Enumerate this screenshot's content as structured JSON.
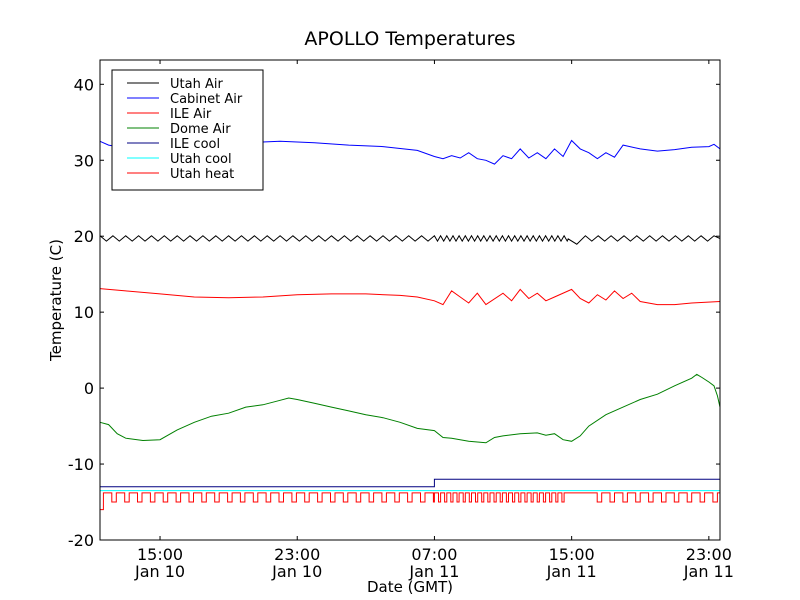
{
  "chart_data": {
    "type": "line",
    "title": "APOLLO Temperatures",
    "xlabel": "Date (GMT)",
    "ylabel": "Temperature (C)",
    "x_units": "hours since Jan 10 00:00 GMT",
    "xlim": [
      11.5,
      47.65
    ],
    "ylim": [
      -20,
      43.2
    ],
    "yticks": [
      -20,
      -10,
      0,
      10,
      20,
      30,
      40
    ],
    "ytick_labels": [
      "-20",
      "-10",
      "0",
      "10",
      "20",
      "30",
      "40"
    ],
    "xticks": [
      15,
      23,
      31,
      39,
      47
    ],
    "xtick_labels": [
      [
        "15:00",
        "Jan 10"
      ],
      [
        "23:00",
        "Jan 10"
      ],
      [
        "07:00",
        "Jan 11"
      ],
      [
        "15:00",
        "Jan 11"
      ],
      [
        "23:00",
        "Jan 11"
      ]
    ],
    "legend_placement": "top-left",
    "series": [
      {
        "name": "Utah Air",
        "color": "#000000",
        "base": [
          [
            11.5,
            19.7
          ],
          [
            47.65,
            19.7
          ]
        ],
        "oscillation": {
          "amplitude": 0.35,
          "high_low": "triangle",
          "segments": [
            {
              "from": 11.5,
              "to": 31,
              "period": 0.75
            },
            {
              "from": 31,
              "to": 38.8,
              "period": 0.36
            },
            {
              "from": 38.8,
              "to": 39.8,
              "period": 1.0,
              "offset": -0.4
            },
            {
              "from": 39.8,
              "to": 47.65,
              "period": 0.75
            }
          ]
        }
      },
      {
        "name": "Cabinet Air",
        "color": "#0000ff",
        "points": [
          [
            11.5,
            32.5
          ],
          [
            12,
            32.0
          ],
          [
            13,
            31.6
          ],
          [
            15,
            31.7
          ],
          [
            17,
            31.8
          ],
          [
            19,
            32.2
          ],
          [
            22,
            32.5
          ],
          [
            24,
            32.3
          ],
          [
            26,
            32.0
          ],
          [
            28,
            31.8
          ],
          [
            30,
            31.3
          ],
          [
            31,
            30.5
          ],
          [
            31.5,
            30.2
          ],
          [
            32,
            30.6
          ],
          [
            32.5,
            30.3
          ],
          [
            33,
            31.0
          ],
          [
            33.5,
            30.2
          ],
          [
            34,
            30.0
          ],
          [
            34.5,
            29.5
          ],
          [
            35,
            30.6
          ],
          [
            35.5,
            30.2
          ],
          [
            36,
            31.5
          ],
          [
            36.5,
            30.3
          ],
          [
            37,
            31.0
          ],
          [
            37.5,
            30.2
          ],
          [
            38,
            31.5
          ],
          [
            38.5,
            30.5
          ],
          [
            39,
            32.6
          ],
          [
            39.5,
            31.5
          ],
          [
            40,
            31.0
          ],
          [
            40.5,
            30.2
          ],
          [
            41,
            31.0
          ],
          [
            41.5,
            30.4
          ],
          [
            42,
            32.0
          ],
          [
            43,
            31.5
          ],
          [
            44,
            31.2
          ],
          [
            45,
            31.4
          ],
          [
            46,
            31.7
          ],
          [
            47,
            31.8
          ],
          [
            47.3,
            32.1
          ],
          [
            47.65,
            31.5
          ]
        ]
      },
      {
        "name": "ILE Air",
        "color": "#ff0000",
        "points": [
          [
            11.5,
            13.1
          ],
          [
            13,
            12.8
          ],
          [
            15,
            12.4
          ],
          [
            17,
            12.0
          ],
          [
            19,
            11.9
          ],
          [
            21,
            12.0
          ],
          [
            23,
            12.3
          ],
          [
            25,
            12.4
          ],
          [
            27,
            12.4
          ],
          [
            29,
            12.2
          ],
          [
            30,
            12.0
          ],
          [
            31,
            11.5
          ],
          [
            31.5,
            11.0
          ],
          [
            32,
            12.8
          ],
          [
            32.5,
            12.0
          ],
          [
            33,
            11.2
          ],
          [
            33.5,
            12.5
          ],
          [
            34,
            11.0
          ],
          [
            35,
            12.5
          ],
          [
            35.5,
            11.5
          ],
          [
            36,
            13.0
          ],
          [
            36.5,
            11.8
          ],
          [
            37,
            12.5
          ],
          [
            37.5,
            11.5
          ],
          [
            38,
            12.0
          ],
          [
            39,
            13.0
          ],
          [
            39.5,
            11.8
          ],
          [
            40,
            11.2
          ],
          [
            40.5,
            12.3
          ],
          [
            41,
            11.6
          ],
          [
            41.5,
            12.8
          ],
          [
            42,
            11.8
          ],
          [
            42.5,
            12.5
          ],
          [
            43,
            11.4
          ],
          [
            44,
            11.0
          ],
          [
            45,
            11.0
          ],
          [
            46,
            11.2
          ],
          [
            47.65,
            11.4
          ]
        ]
      },
      {
        "name": "Dome Air",
        "color": "#008000",
        "points": [
          [
            11.5,
            -4.5
          ],
          [
            12,
            -4.8
          ],
          [
            12.5,
            -6.0
          ],
          [
            13,
            -6.6
          ],
          [
            14,
            -6.9
          ],
          [
            15,
            -6.8
          ],
          [
            16,
            -5.5
          ],
          [
            17,
            -4.5
          ],
          [
            18,
            -3.7
          ],
          [
            19,
            -3.3
          ],
          [
            20,
            -2.5
          ],
          [
            21,
            -2.2
          ],
          [
            22,
            -1.6
          ],
          [
            22.5,
            -1.3
          ],
          [
            23,
            -1.5
          ],
          [
            24,
            -2.0
          ],
          [
            25,
            -2.5
          ],
          [
            26,
            -3.0
          ],
          [
            27,
            -3.5
          ],
          [
            28,
            -3.9
          ],
          [
            29,
            -4.5
          ],
          [
            30,
            -5.3
          ],
          [
            31,
            -5.6
          ],
          [
            31.5,
            -6.5
          ],
          [
            32,
            -6.6
          ],
          [
            33,
            -7.0
          ],
          [
            34,
            -7.2
          ],
          [
            34.5,
            -6.5
          ],
          [
            35,
            -6.3
          ],
          [
            36,
            -6.0
          ],
          [
            37,
            -5.9
          ],
          [
            37.5,
            -6.2
          ],
          [
            38,
            -6.0
          ],
          [
            38.5,
            -6.8
          ],
          [
            39,
            -7.0
          ],
          [
            39.5,
            -6.3
          ],
          [
            40,
            -5.0
          ],
          [
            41,
            -3.5
          ],
          [
            42,
            -2.5
          ],
          [
            43,
            -1.5
          ],
          [
            44,
            -0.8
          ],
          [
            45,
            0.3
          ],
          [
            46,
            1.3
          ],
          [
            46.3,
            1.8
          ],
          [
            46.6,
            1.4
          ],
          [
            47,
            0.8
          ],
          [
            47.3,
            0.3
          ],
          [
            47.5,
            -1.0
          ],
          [
            47.65,
            -2.5
          ]
        ]
      },
      {
        "name": "ILE cool",
        "color": "#000080",
        "points": [
          [
            11.5,
            -13
          ],
          [
            31,
            -13
          ],
          [
            31,
            -12
          ],
          [
            47.65,
            -12
          ]
        ]
      },
      {
        "name": "Utah cool",
        "color": "#00ffff",
        "points": [
          [
            11.5,
            -13.5
          ],
          [
            47.65,
            -13.5
          ]
        ]
      },
      {
        "name": "Utah heat",
        "color": "#ff0000",
        "square": {
          "high": -13.8,
          "low": -15,
          "start": -16,
          "duty_high": 0.65,
          "segments": [
            {
              "from": 11.7,
              "to": 31,
              "period": 0.75
            },
            {
              "from": 31,
              "to": 38.7,
              "period": 0.36
            },
            {
              "from": 40,
              "to": 47.65,
              "period": 0.75
            }
          ]
        }
      }
    ]
  }
}
